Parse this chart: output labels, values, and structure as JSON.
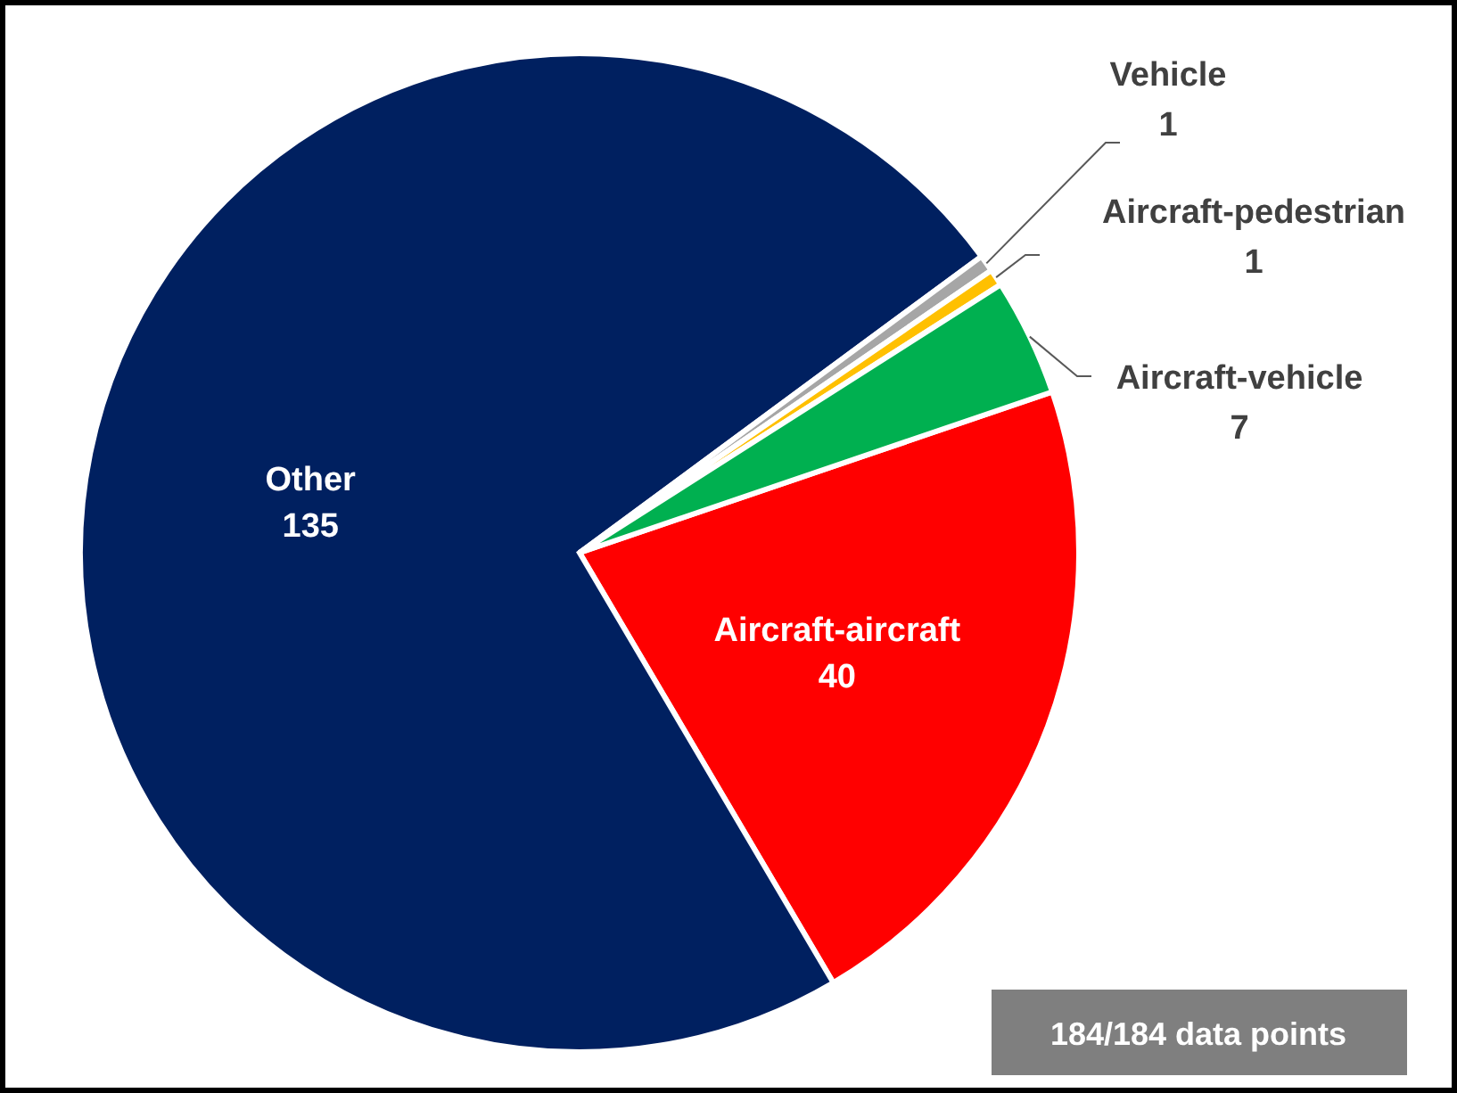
{
  "chart_data": {
    "type": "pie",
    "categories": [
      "Aircraft-aircraft",
      "Other",
      "Vehicle",
      "Aircraft-pedestrian",
      "Aircraft-vehicle"
    ],
    "values": [
      40,
      135,
      1,
      1,
      7
    ],
    "colors": [
      "#ff0000",
      "#002060",
      "#a6a6a6",
      "#ffc000",
      "#00b050"
    ],
    "data_labels": true,
    "annotations": [
      "184/184 data points"
    ]
  }
}
